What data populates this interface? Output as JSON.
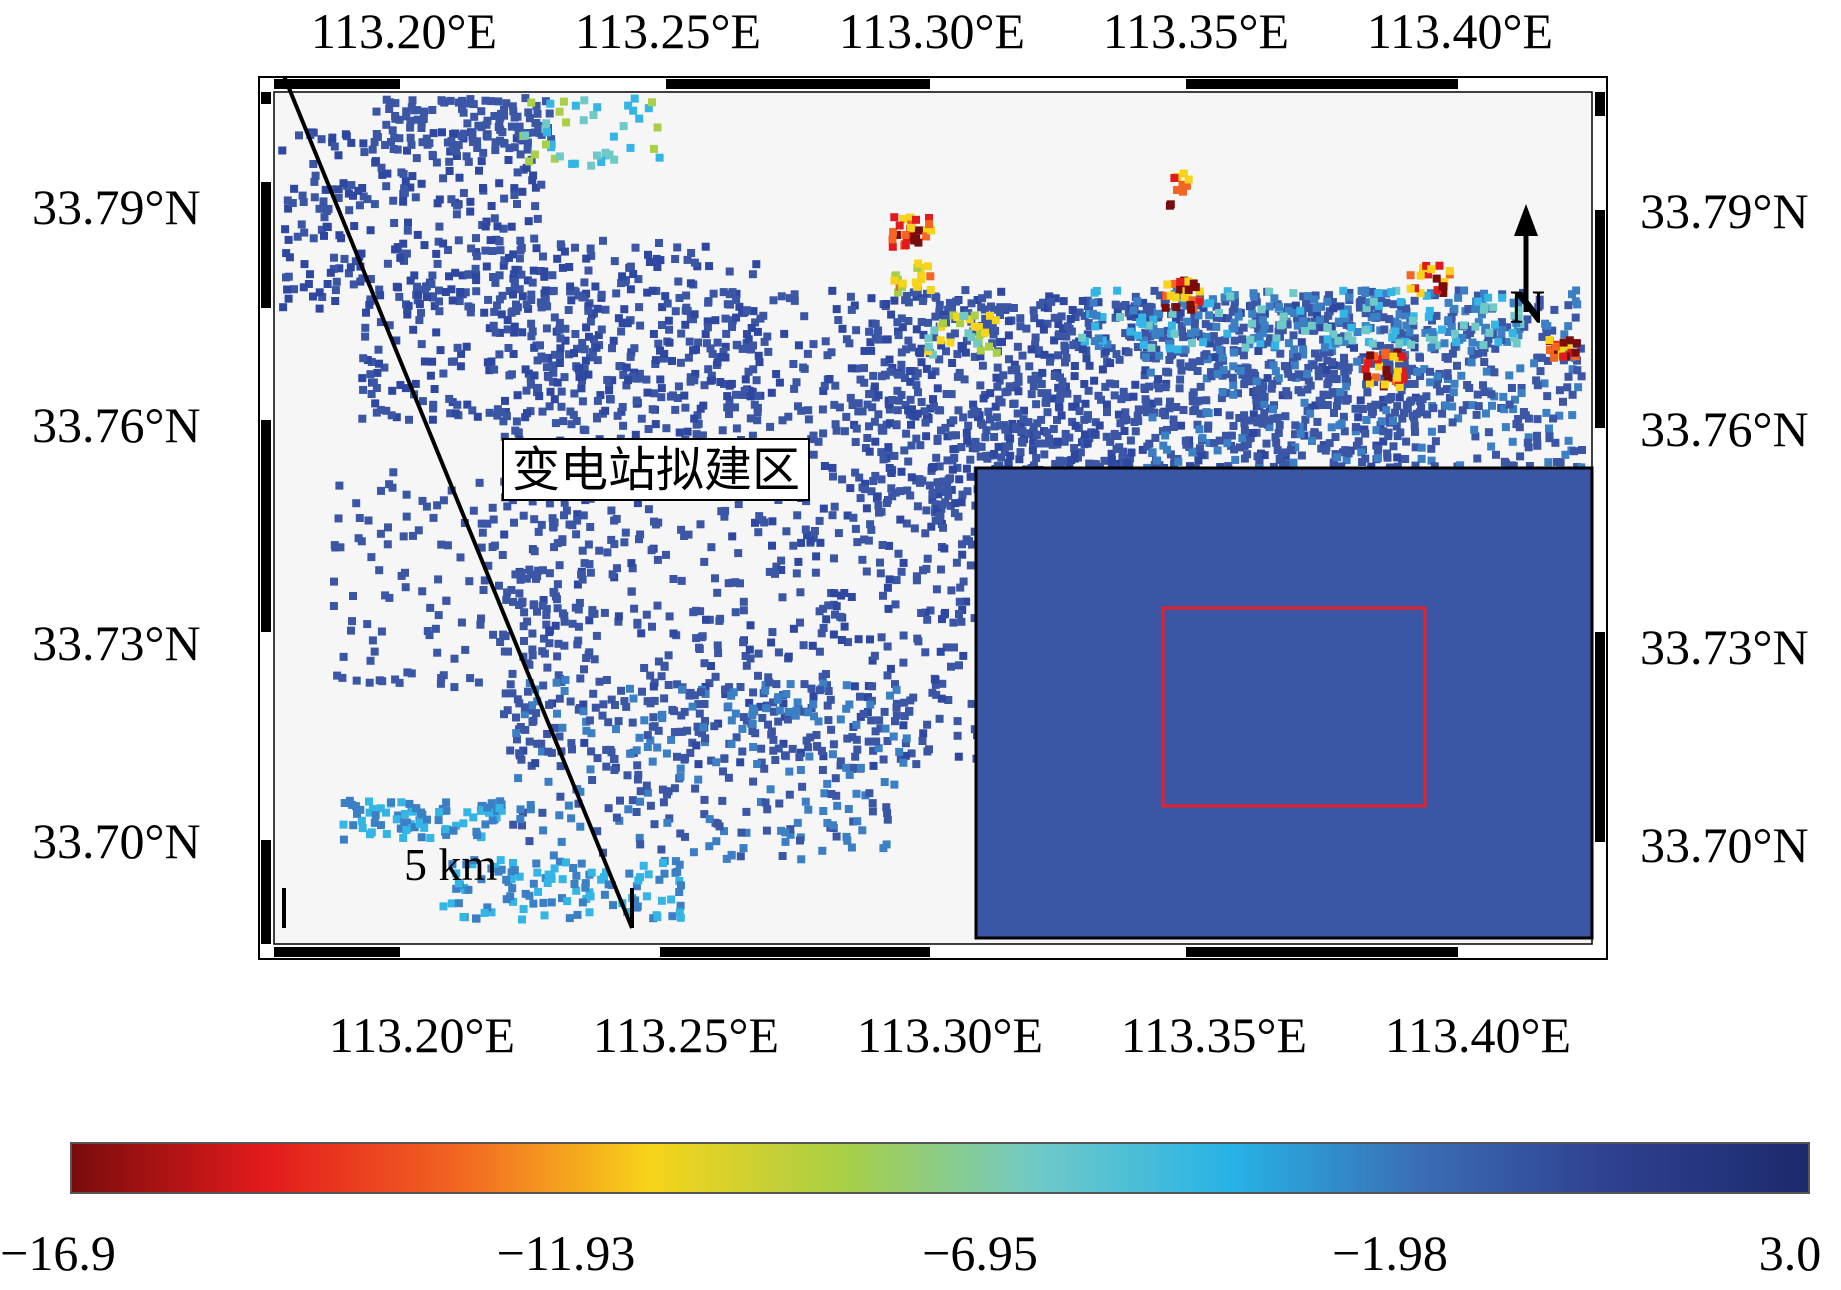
{
  "map": {
    "top_lon_labels": [
      "113.20°E",
      "113.25°E",
      "113.30°E",
      "113.35°E",
      "113.40°E"
    ],
    "bottom_lon_labels": [
      "113.20°E",
      "113.25°E",
      "113.30°E",
      "113.35°E",
      "113.40°E"
    ],
    "left_lat_labels": [
      "33.79°N",
      "33.76°N",
      "33.73°N",
      "33.70°N"
    ],
    "right_lat_labels": [
      "33.79°N",
      "33.76°N",
      "33.73°N",
      "33.70°N"
    ],
    "annotation": "变电站拟建区",
    "scale_bar_label": "5 km",
    "north_label": "N",
    "north_icon": "north-arrow-icon",
    "inset_fill_color": "#3a56a5",
    "highlight_box_color": "#e8202a"
  },
  "colorbar": {
    "tick_labels": [
      "−16.9",
      "−11.93",
      "−6.95",
      "−1.98",
      "3.0"
    ],
    "min": -16.9,
    "max": 3.0,
    "colors": [
      "#7a0c0c",
      "#e31a1c",
      "#f26522",
      "#f7d31a",
      "#a8cf45",
      "#6fc9c7",
      "#27b3e6",
      "#3b6cb5",
      "#2e3f8f",
      "#1c2a6b"
    ]
  }
}
